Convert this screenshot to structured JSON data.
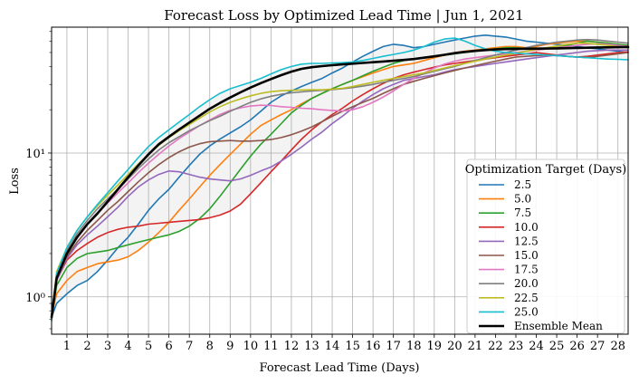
{
  "chart_data": {
    "type": "line",
    "title": "Forecast Loss by Optimized Lead Time  |  Jun 1, 2021",
    "xlabel": "Forecast Lead Time (Days)",
    "ylabel": "Loss",
    "yscale": "log",
    "xlim": [
      0.25,
      28.5
    ],
    "ylim": [
      0.55,
      75
    ],
    "grid": true,
    "x_ticks": [
      1,
      2,
      3,
      4,
      5,
      6,
      7,
      8,
      9,
      10,
      11,
      12,
      13,
      14,
      15,
      16,
      17,
      18,
      19,
      20,
      21,
      22,
      23,
      24,
      25,
      26,
      27,
      28
    ],
    "y_ticks": [
      {
        "value": 1,
        "label": "10⁰"
      },
      {
        "value": 10,
        "label": "10¹"
      }
    ],
    "x": [
      0.25,
      0.5,
      1,
      1.5,
      2,
      2.5,
      3,
      3.5,
      4,
      4.5,
      5,
      5.5,
      6,
      6.5,
      7,
      7.5,
      8,
      8.5,
      9,
      9.5,
      10,
      10.5,
      11,
      11.5,
      12,
      12.5,
      13,
      13.5,
      14,
      14.5,
      15,
      15.5,
      16,
      16.5,
      17,
      17.5,
      18,
      18.5,
      19,
      19.5,
      20,
      20.5,
      21,
      21.5,
      22,
      22.5,
      23,
      23.5,
      24,
      24.5,
      25,
      25.5,
      26,
      26.5,
      27,
      27.5,
      28,
      28.5
    ],
    "legend": {
      "title": "Optimization Target (Days)",
      "position": "right"
    },
    "series": [
      {
        "name": "2.5",
        "color": "#1f77b4",
        "values": [
          0.72,
          0.9,
          1.05,
          1.2,
          1.3,
          1.5,
          1.8,
          2.2,
          2.6,
          3.2,
          4.0,
          4.8,
          5.6,
          6.8,
          8.2,
          9.8,
          11.2,
          12.5,
          13.8,
          15.2,
          17.0,
          19.5,
          22.5,
          25.0,
          27.0,
          29.0,
          31.0,
          33.0,
          36.0,
          39.0,
          43.0,
          47.0,
          51.0,
          55.0,
          57.0,
          56.0,
          54.0,
          55.0,
          57.0,
          59.0,
          61.0,
          63.0,
          65.0,
          66.0,
          65.0,
          64.0,
          62.0,
          60.0,
          59.0,
          58.0,
          57.0,
          56.0,
          55.0,
          54.0,
          53.0,
          52.0,
          51.0,
          50.0
        ]
      },
      {
        "name": "5.0",
        "color": "#ff7f0e",
        "values": [
          0.75,
          1.05,
          1.3,
          1.5,
          1.6,
          1.7,
          1.75,
          1.8,
          1.9,
          2.1,
          2.4,
          2.8,
          3.3,
          4.0,
          4.8,
          5.8,
          7.0,
          8.3,
          9.8,
          11.5,
          13.5,
          15.5,
          17.0,
          18.5,
          20.0,
          22.0,
          24.0,
          26.0,
          28.0,
          30.0,
          32.0,
          34.0,
          36.0,
          38.0,
          40.0,
          41.0,
          42.0,
          44.0,
          46.0,
          48.0,
          50.0,
          51.0,
          52.0,
          53.0,
          54.0,
          55.0,
          55.0,
          54.0,
          55.0,
          57.0,
          58.0,
          59.0,
          60.0,
          60.0,
          59.0,
          58.0,
          57.0,
          56.0
        ]
      },
      {
        "name": "7.5",
        "color": "#2ca02c",
        "values": [
          0.72,
          1.2,
          1.6,
          1.85,
          2.0,
          2.05,
          2.1,
          2.2,
          2.3,
          2.4,
          2.5,
          2.6,
          2.7,
          2.85,
          3.1,
          3.5,
          4.1,
          5.0,
          6.2,
          7.7,
          9.5,
          11.5,
          13.5,
          16.0,
          19.0,
          21.5,
          24.0,
          26.0,
          28.0,
          30.0,
          32.0,
          34.5,
          37.0,
          39.5,
          42.0,
          44.0,
          45.0,
          46.0,
          47.0,
          48.0,
          49.0,
          50.0,
          51.0,
          52.0,
          53.0,
          54.0,
          54.0,
          53.0,
          52.0,
          53.0,
          54.0,
          56.0,
          58.0,
          60.0,
          59.0,
          58.0,
          57.0,
          56.0
        ]
      },
      {
        "name": "10.0",
        "color": "#d62728",
        "values": [
          0.75,
          1.3,
          1.8,
          2.1,
          2.35,
          2.6,
          2.8,
          2.95,
          3.05,
          3.1,
          3.2,
          3.25,
          3.3,
          3.35,
          3.4,
          3.45,
          3.55,
          3.7,
          3.95,
          4.4,
          5.2,
          6.2,
          7.4,
          8.8,
          10.5,
          12.5,
          14.5,
          16.5,
          18.5,
          20.5,
          23.0,
          25.5,
          28.0,
          30.5,
          33.0,
          35.0,
          36.5,
          38.0,
          39.5,
          41.0,
          42.0,
          43.0,
          44.0,
          45.0,
          46.0,
          47.0,
          48.0,
          49.0,
          50.0,
          49.0,
          48.0,
          47.0,
          46.5,
          47.0,
          48.0,
          49.0,
          50.0,
          50.5
        ]
      },
      {
        "name": "12.5",
        "color": "#9467bd",
        "values": [
          0.75,
          1.3,
          1.85,
          2.3,
          2.7,
          3.1,
          3.6,
          4.2,
          5.0,
          5.8,
          6.5,
          7.1,
          7.5,
          7.4,
          7.1,
          6.8,
          6.6,
          6.5,
          6.4,
          6.6,
          7.0,
          7.5,
          8.0,
          8.8,
          9.8,
          11.0,
          12.5,
          14.0,
          16.0,
          18.0,
          20.5,
          23.0,
          25.5,
          28.0,
          30.0,
          32.0,
          33.0,
          34.0,
          35.0,
          36.5,
          38.0,
          39.0,
          40.0,
          41.0,
          42.0,
          43.0,
          44.0,
          45.0,
          46.0,
          47.0,
          48.0,
          49.0,
          50.0,
          51.0,
          51.5,
          52.0,
          52.0,
          52.0
        ]
      },
      {
        "name": "15.0",
        "color": "#8c564b",
        "values": [
          0.75,
          1.35,
          1.9,
          2.4,
          2.9,
          3.4,
          4.0,
          4.6,
          5.4,
          6.3,
          7.3,
          8.3,
          9.3,
          10.2,
          11.0,
          11.6,
          12.0,
          12.1,
          12.2,
          12.1,
          12.1,
          12.2,
          12.4,
          12.8,
          13.4,
          14.2,
          15.2,
          16.5,
          18.0,
          19.5,
          21.0,
          22.5,
          24.0,
          26.0,
          28.0,
          30.0,
          31.5,
          33.0,
          34.5,
          36.0,
          37.5,
          39.0,
          40.5,
          42.0,
          43.5,
          45.0,
          46.5,
          47.0,
          47.5,
          48.0,
          47.5,
          47.0,
          46.5,
          46.0,
          47.0,
          48.0,
          49.0,
          50.0
        ]
      },
      {
        "name": "17.5",
        "color": "#e377c2",
        "values": [
          0.75,
          1.4,
          2.0,
          2.6,
          3.2,
          3.8,
          4.5,
          5.3,
          6.2,
          7.3,
          8.5,
          9.8,
          11.2,
          12.6,
          14.0,
          15.5,
          17.0,
          18.5,
          19.8,
          20.6,
          21.2,
          21.5,
          21.4,
          21.0,
          20.8,
          20.5,
          20.3,
          20.0,
          19.8,
          19.6,
          20.0,
          21.0,
          22.5,
          24.5,
          27.0,
          30.0,
          33.0,
          36.0,
          39.0,
          41.5,
          43.5,
          45.0,
          46.0,
          47.0,
          48.0,
          49.0,
          50.0,
          51.0,
          52.0,
          53.0,
          54.0,
          55.0,
          56.0,
          57.0,
          57.5,
          57.0,
          56.0,
          55.0
        ]
      },
      {
        "name": "20.0",
        "color": "#7f7f7f",
        "values": [
          0.75,
          1.45,
          2.1,
          2.75,
          3.4,
          4.1,
          4.8,
          5.6,
          6.6,
          7.8,
          9.1,
          10.5,
          11.8,
          13.0,
          14.3,
          15.5,
          16.8,
          18.0,
          19.5,
          21.0,
          22.5,
          23.8,
          24.8,
          25.6,
          26.2,
          26.6,
          27.0,
          27.3,
          27.6,
          28.0,
          28.5,
          29.2,
          30.0,
          31.0,
          32.0,
          33.0,
          34.0,
          35.5,
          37.0,
          38.5,
          40.0,
          42.0,
          44.0,
          46.0,
          48.0,
          50.0,
          52.0,
          54.0,
          56.0,
          57.5,
          59.0,
          60.0,
          61.0,
          61.5,
          61.0,
          60.0,
          59.0,
          58.0
        ]
      },
      {
        "name": "22.5",
        "color": "#bcbd22",
        "values": [
          0.75,
          1.5,
          2.2,
          2.9,
          3.6,
          4.3,
          5.1,
          6.0,
          7.1,
          8.4,
          9.8,
          11.3,
          12.8,
          14.3,
          15.8,
          17.5,
          19.3,
          21.0,
          22.5,
          23.8,
          25.0,
          26.0,
          26.7,
          27.1,
          27.3,
          27.4,
          27.5,
          27.5,
          27.8,
          28.2,
          29.0,
          30.0,
          31.0,
          32.0,
          33.0,
          34.0,
          35.0,
          36.0,
          37.5,
          39.0,
          40.5,
          42.0,
          43.5,
          45.0,
          46.5,
          48.0,
          49.5,
          51.0,
          52.5,
          54.0,
          55.5,
          57.0,
          58.0,
          58.0,
          57.0,
          56.0,
          55.0,
          54.0
        ]
      },
      {
        "name": "25.0",
        "color": "#17becf",
        "values": [
          0.68,
          1.45,
          2.2,
          2.9,
          3.6,
          4.4,
          5.3,
          6.4,
          7.7,
          9.3,
          11.1,
          12.8,
          14.5,
          16.4,
          18.5,
          21.0,
          23.5,
          26.0,
          28.0,
          29.5,
          31.0,
          33.0,
          35.5,
          38.0,
          40.0,
          41.5,
          42.0,
          42.0,
          42.3,
          42.5,
          43.0,
          44.0,
          45.5,
          47.0,
          48.5,
          50.0,
          52.0,
          55.0,
          59.0,
          62.0,
          63.0,
          60.0,
          56.0,
          53.0,
          51.0,
          50.0,
          49.5,
          49.0,
          48.5,
          48.0,
          47.5,
          47.0,
          46.5,
          46.0,
          45.5,
          45.0,
          44.8,
          44.5
        ]
      },
      {
        "name": "Ensemble Mean",
        "color": "#000000",
        "values": [
          0.72,
          1.35,
          2.0,
          2.6,
          3.2,
          3.8,
          4.6,
          5.6,
          6.8,
          8.2,
          9.8,
          11.5,
          13.0,
          14.6,
          16.3,
          18.2,
          20.3,
          22.3,
          24.3,
          26.4,
          28.5,
          30.6,
          32.7,
          34.8,
          36.8,
          38.5,
          39.5,
          40.2,
          40.8,
          41.3,
          41.8,
          42.3,
          42.8,
          43.3,
          43.8,
          44.4,
          45.0,
          46.0,
          47.0,
          48.2,
          49.5,
          50.5,
          51.3,
          52.0,
          52.5,
          52.8,
          53.0,
          53.1,
          53.2,
          53.3,
          53.4,
          53.6,
          53.8,
          54.0,
          54.2,
          54.3,
          54.4,
          54.5
        ]
      }
    ]
  }
}
